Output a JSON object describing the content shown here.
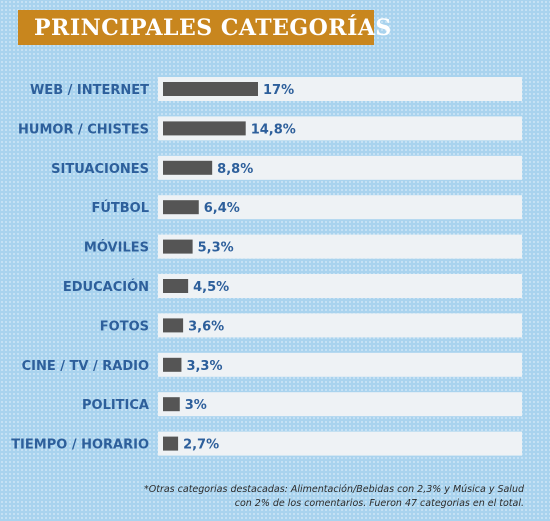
{
  "title": "PRINCIPALES CATEGORÍAS",
  "footnote": "*Otras categorias destacadas: Alimentación/Bebidas con 2,3% y Música y Salud con 2% de los comentarios.  Fueron 47 categorias en el total.",
  "colors": {
    "background": "#a9d3ee",
    "banner": "#c8861e",
    "row": "#eef2f5",
    "bar": "#555555",
    "label": "#2d5f9b"
  },
  "chart_data": {
    "type": "bar",
    "orientation": "horizontal",
    "title": "PRINCIPALES CATEGORÍAS",
    "xlabel": "",
    "ylabel": "",
    "grid": false,
    "xlim": [
      0,
      17
    ],
    "categories": [
      "WEB / INTERNET",
      "HUMOR / CHISTES",
      "SITUACIONES",
      "FÚTBOL",
      "MÓVILES",
      "EDUCACIÓN",
      "FOTOS",
      "CINE / TV / RADIO",
      "POLITICA",
      "TIEMPO / HORARIO"
    ],
    "values": [
      17,
      14.8,
      8.8,
      6.4,
      5.3,
      4.5,
      3.6,
      3.3,
      3,
      2.7
    ],
    "value_labels": [
      "17%",
      "14,8%",
      "8,8%",
      "6,4%",
      "5,3%",
      "4,5%",
      "3,6%",
      "3,3%",
      "3%",
      "2,7%"
    ]
  }
}
